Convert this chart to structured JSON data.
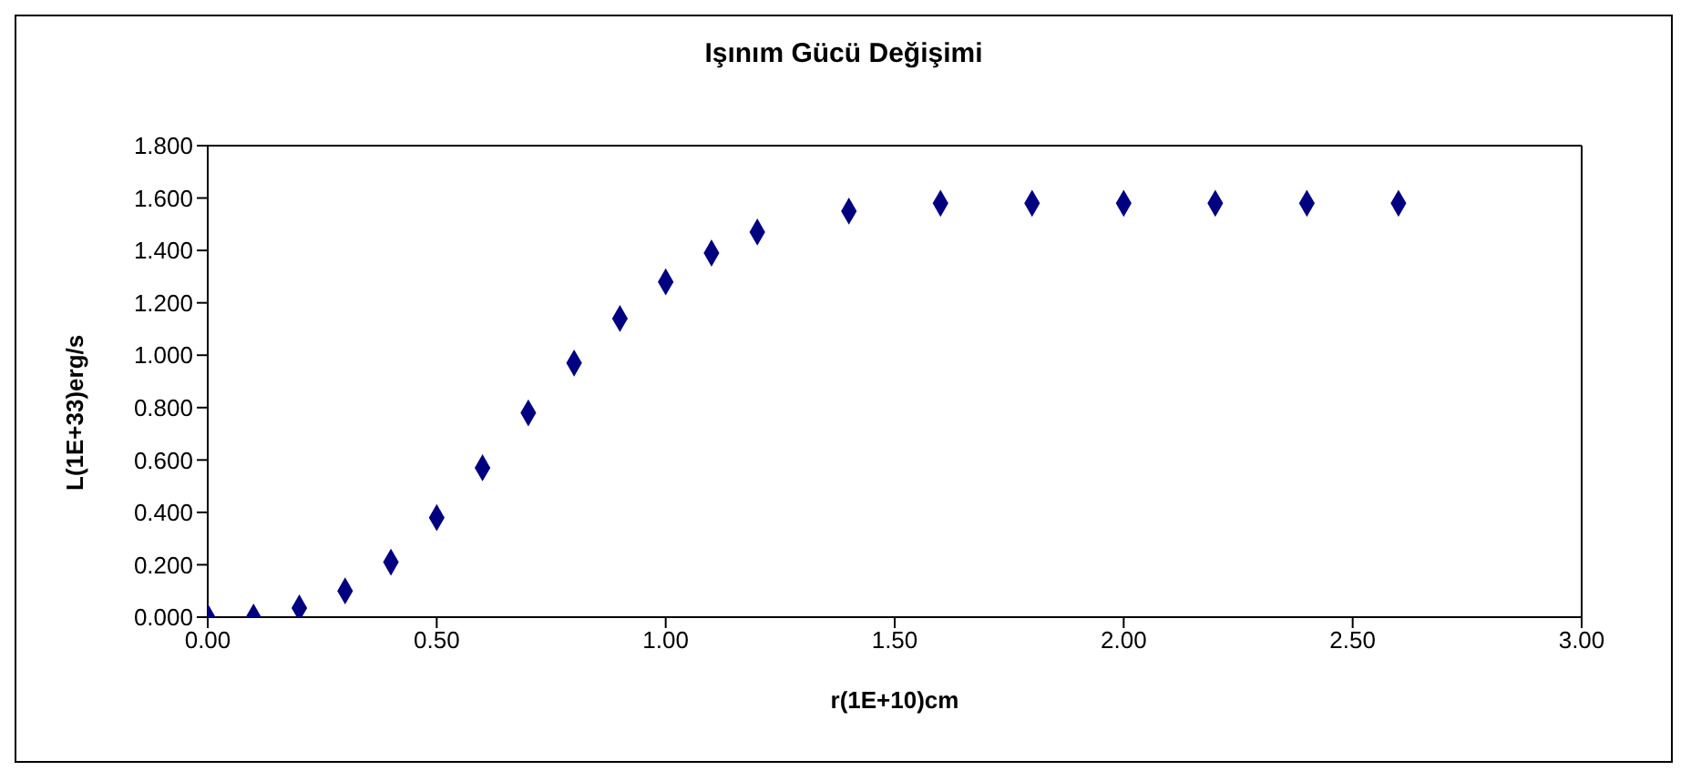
{
  "chart_data": {
    "type": "scatter",
    "title": "Işınım Gücü Değişimi",
    "xlabel": "r(1E+10)cm",
    "ylabel": "L(1E+33)erg/s",
    "x": [
      0,
      0.1,
      0.2,
      0.3,
      0.4,
      0.5,
      0.6,
      0.7,
      0.8,
      0.9,
      1.0,
      1.1,
      1.2,
      1.4,
      1.6,
      1.8,
      2.0,
      2.2,
      2.4,
      2.6
    ],
    "series": [
      {
        "color": "#000080",
        "values": [
          0,
          0,
          0.035,
          0.1,
          0.21,
          0.38,
          0.57,
          0.78,
          0.97,
          1.14,
          1.28,
          1.39,
          1.47,
          1.55,
          1.58,
          1.58,
          1.58,
          1.58,
          1.58,
          1.58
        ]
      }
    ],
    "xlim": [
      0,
      3
    ],
    "ylim": [
      0,
      1.8
    ],
    "xticks": [
      {
        "value": 0,
        "label": "0.00"
      },
      {
        "value": 0.5,
        "label": "0.50"
      },
      {
        "value": 1,
        "label": "1.00"
      },
      {
        "value": 1.5,
        "label": "1.50"
      },
      {
        "value": 2,
        "label": "2.00"
      },
      {
        "value": 2.5,
        "label": "2.50"
      },
      {
        "value": 3,
        "label": "3.00"
      }
    ],
    "yticks": [
      {
        "value": 0,
        "label": "0.000"
      },
      {
        "value": 0.2,
        "label": "0.200"
      },
      {
        "value": 0.4,
        "label": "0.400"
      },
      {
        "value": 0.6,
        "label": "0.600"
      },
      {
        "value": 0.8,
        "label": "0.800"
      },
      {
        "value": 1,
        "label": "1.000"
      },
      {
        "value": 1.2,
        "label": "1.200"
      },
      {
        "value": 1.4,
        "label": "1.400"
      },
      {
        "value": 1.6,
        "label": "1.600"
      },
      {
        "value": 1.8,
        "label": "1.800"
      }
    ],
    "marker": "diamond",
    "grid": false,
    "legend": false
  }
}
